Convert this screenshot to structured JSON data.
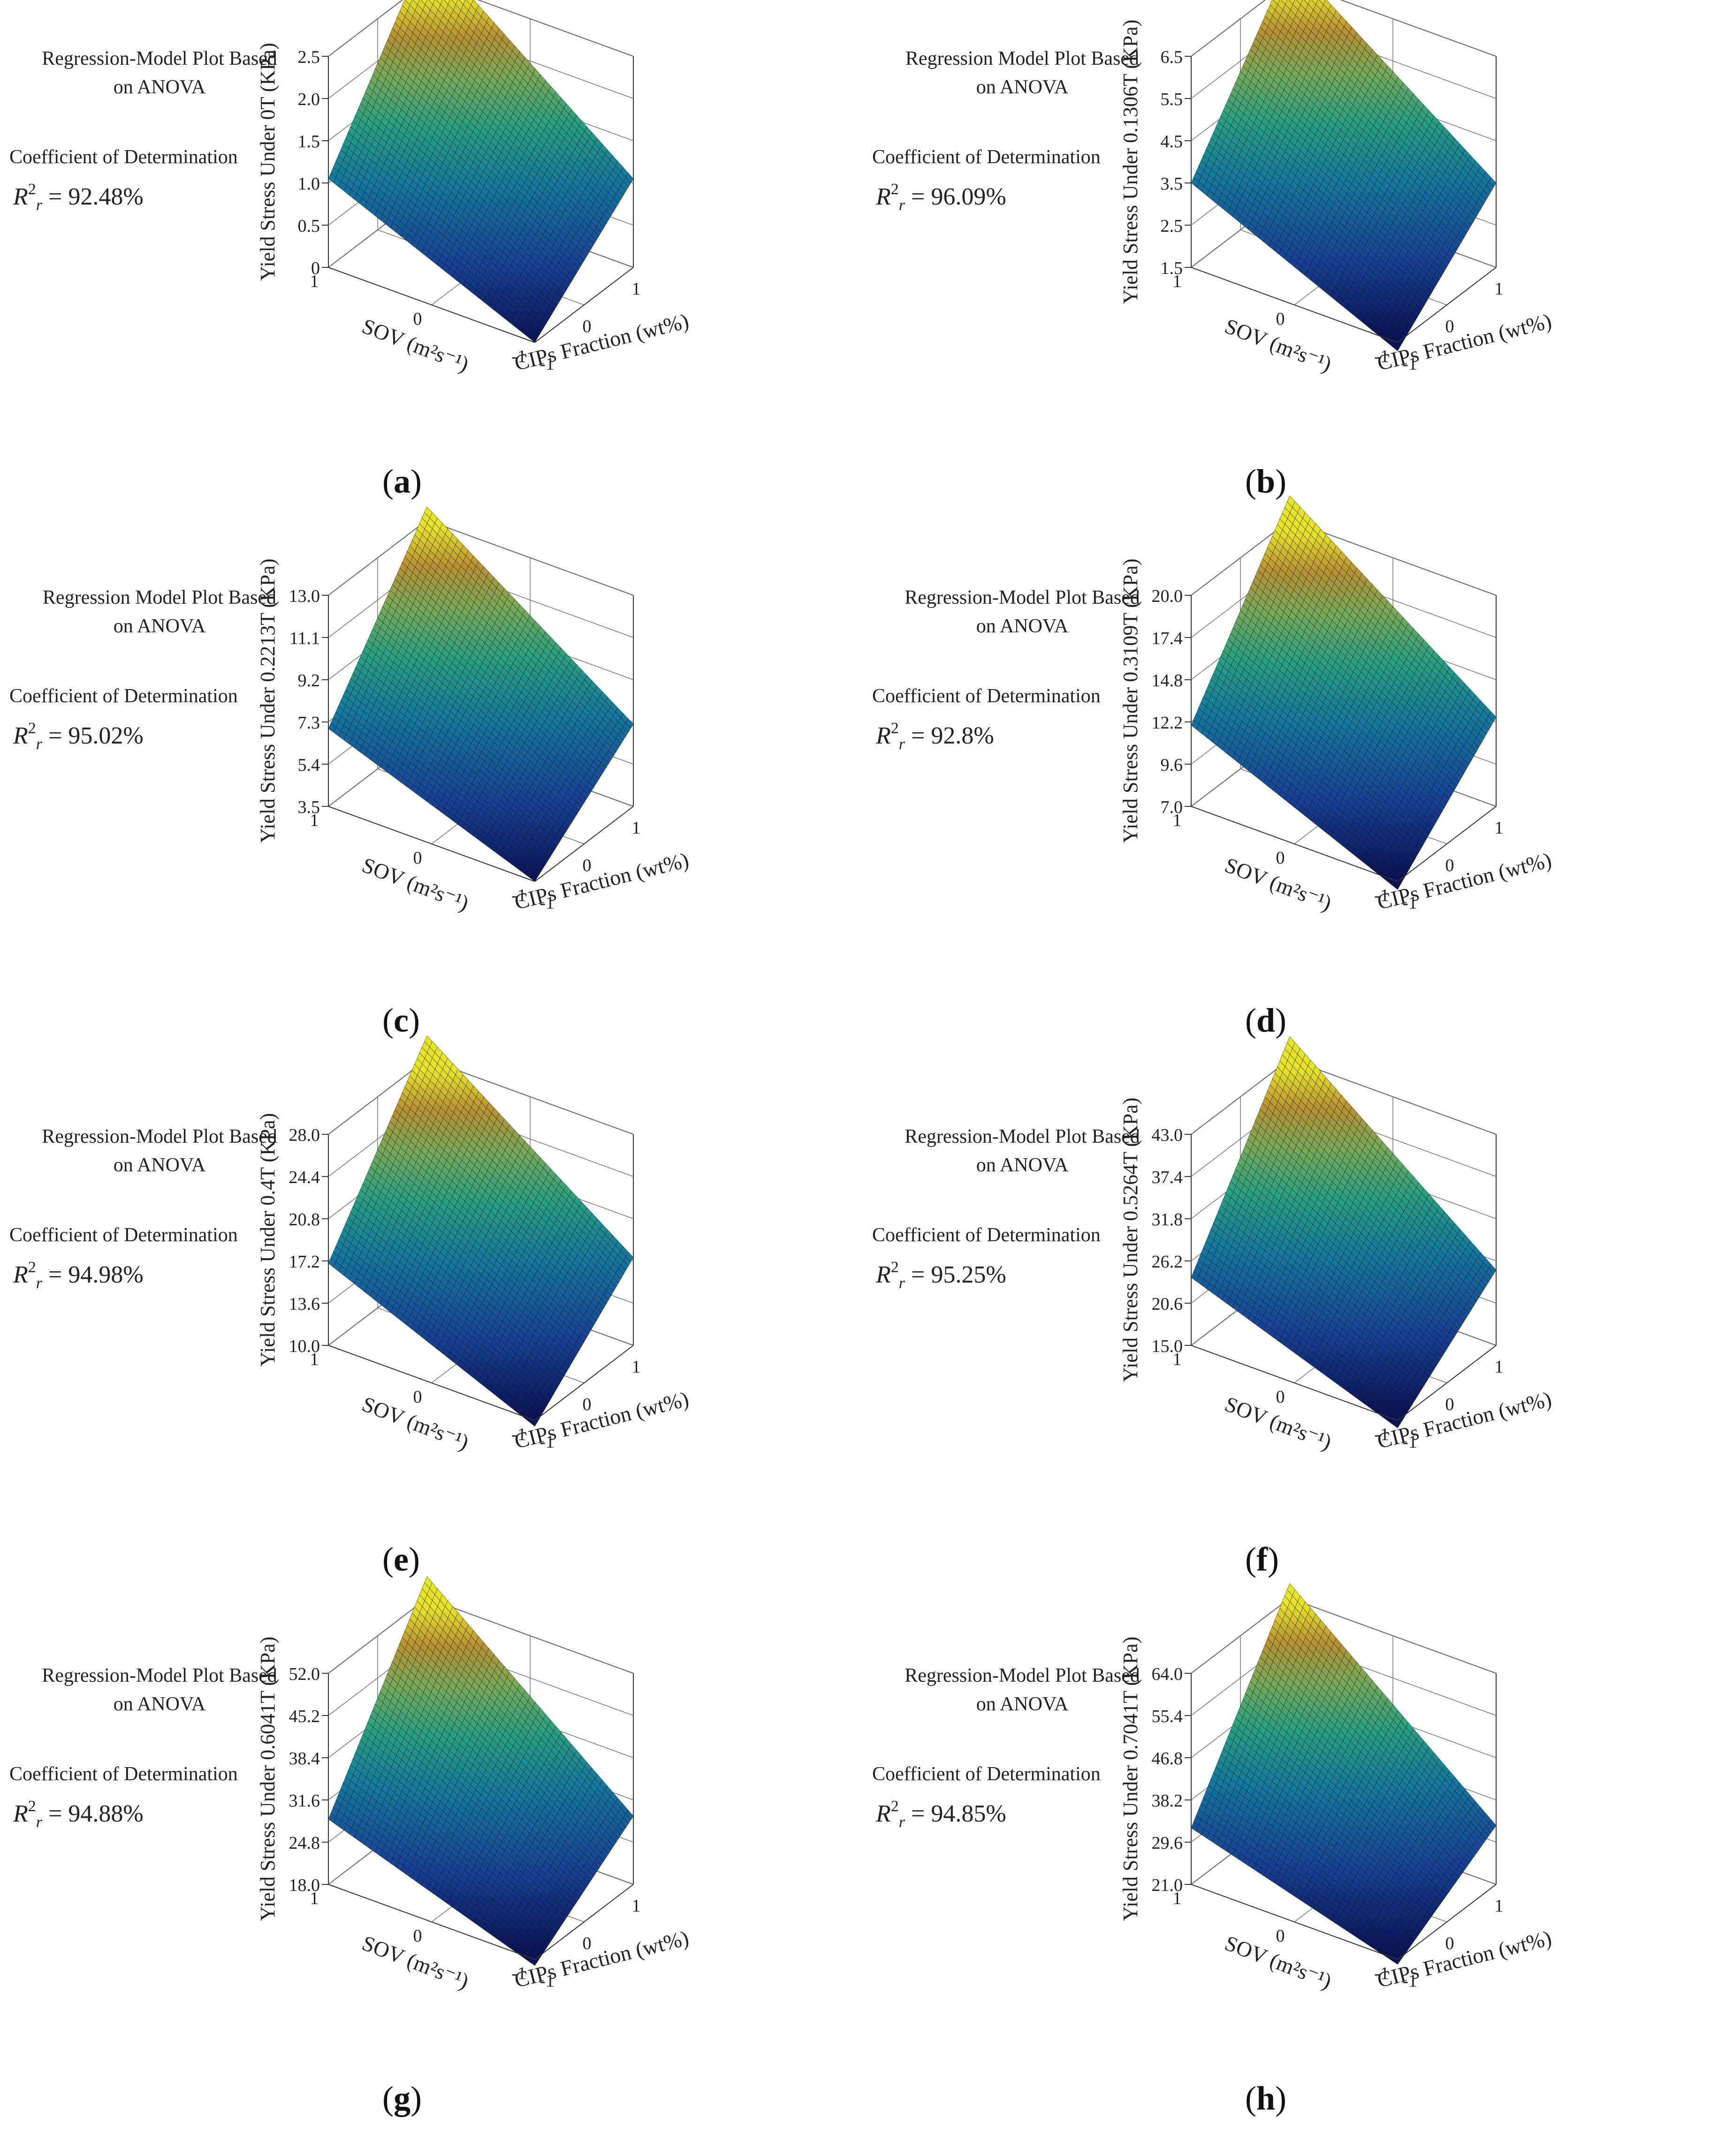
{
  "common": {
    "x_label": "CIPs Fraction (wt%)",
    "y_label": "SOV (m²s⁻¹)",
    "r2_prefix": "R",
    "r2_sup": "2",
    "r2_eq": " = "
  },
  "panels": [
    {
      "label": "a",
      "title_line1": "Regression-Model Plot Based",
      "title_line2": "on ANOVA",
      "coef_label": "Coefficient of Determination",
      "r2_sub": "r",
      "r2_value": "92.48%"
    },
    {
      "label": "b",
      "title_line1": "Regression Model Plot Based",
      "title_line2": "on ANOVA",
      "coef_label": "Coefficient of Determination",
      "r2_sub": "r",
      "r2_value": "96.09%"
    },
    {
      "label": "c",
      "title_line1": "Regression Model Plot Based",
      "title_line2": "on ANOVA",
      "coef_label": "Coefficient of Determination",
      "r2_sub": "r",
      "r2_value": "95.02%"
    },
    {
      "label": "d",
      "title_line1": "Regression-Model Plot Based",
      "title_line2": "on ANOVA",
      "coef_label": "Coefficient of Determination",
      "r2_sub": "r",
      "r2_value": "92.8%"
    },
    {
      "label": "e",
      "title_line1": "Regression-Model Plot Based",
      "title_line2": "on ANOVA",
      "coef_label": "Coefficient of Determination",
      "r2_sub": "r",
      "r2_value": "94.98%"
    },
    {
      "label": "f",
      "title_line1": "Regression-Model Plot Based",
      "title_line2": "on ANOVA",
      "coef_label": "Coefficient of Determination",
      "r2_sub": "r",
      "r2_value": "95.25%"
    },
    {
      "label": "g",
      "title_line1": "Regression-Model Plot Based",
      "title_line2": "on ANOVA",
      "coef_label": "Coefficient of Determination",
      "r2_sub": "r",
      "r2_value": "94.88%"
    },
    {
      "label": "h",
      "title_line1": "Regression-Model Plot Based",
      "title_line2": "on ANOVA",
      "coef_label": "Coefficient of Determination",
      "r2_sub": "r",
      "r2_value": "94.85%"
    }
  ],
  "chart_data": [
    {
      "type": "surface",
      "panel": "a",
      "zlabel": "Yield Stress Under 0T (KPa)",
      "x_label": "CIPs Fraction (wt%)",
      "y_label": "SOV (m²s⁻¹)",
      "x_ticks": [
        "-1",
        "0",
        "1"
      ],
      "y_ticks": [
        "-1",
        "0",
        "1"
      ],
      "z_ticks": [
        "0",
        "0.5",
        "1.0",
        "1.5",
        "2.0",
        "2.5"
      ],
      "z_tick_values": [
        0,
        0.5,
        1.0,
        1.5,
        2.0,
        2.5
      ],
      "zlim": [
        0,
        2.5
      ],
      "z_corners": {
        "xneg_yneg": 0.0,
        "xpos_yneg": 1.05,
        "xneg_ypos": 1.05,
        "xpos_ypos": 2.9
      },
      "grid": true
    },
    {
      "type": "surface",
      "panel": "b",
      "zlabel": "Yield Stress Under 0.1306T (KPa)",
      "x_label": "CIPs Fraction (wt%)",
      "y_label": "SOV (m²s⁻¹)",
      "x_ticks": [
        "-1",
        "0",
        "1"
      ],
      "y_ticks": [
        "-1",
        "0",
        "1"
      ],
      "z_ticks": [
        "1.5",
        "2.5",
        "3.5",
        "4.5",
        "5.5",
        "6.5"
      ],
      "z_tick_values": [
        1.5,
        2.5,
        3.5,
        4.5,
        5.5,
        6.5
      ],
      "zlim": [
        1.5,
        6.5
      ],
      "z_corners": {
        "xneg_yneg": 1.3,
        "xpos_yneg": 3.5,
        "xneg_ypos": 3.5,
        "xpos_ypos": 7.0
      },
      "grid": true
    },
    {
      "type": "surface",
      "panel": "c",
      "zlabel": "Yield Stress Under 0.2213T (KPa)",
      "x_label": "CIPs Fraction (wt%)",
      "y_label": "SOV (m²s⁻¹)",
      "x_ticks": [
        "-1",
        "0",
        "1"
      ],
      "y_ticks": [
        "-1",
        "0",
        "1"
      ],
      "z_ticks": [
        "3.5",
        "5.4",
        "7.3",
        "9.2",
        "11.1",
        "13.0"
      ],
      "z_tick_values": [
        3.5,
        5.4,
        7.3,
        9.2,
        11.1,
        13.0
      ],
      "zlim": [
        3.5,
        13.0
      ],
      "z_corners": {
        "xneg_yneg": 3.5,
        "xpos_yneg": 7.2,
        "xneg_ypos": 7.0,
        "xpos_ypos": 13.6
      },
      "grid": true
    },
    {
      "type": "surface",
      "panel": "d",
      "zlabel": "Yield Stress Under 0.3109T (KPa)",
      "x_label": "CIPs Fraction (wt%)",
      "y_label": "SOV (m²s⁻¹)",
      "x_ticks": [
        "-1",
        "0",
        "1"
      ],
      "y_ticks": [
        "-1",
        "0",
        "1"
      ],
      "z_ticks": [
        "7.0",
        "9.6",
        "12.2",
        "14.8",
        "17.4",
        "20.0"
      ],
      "z_tick_values": [
        7.0,
        9.6,
        12.2,
        14.8,
        17.4,
        20.0
      ],
      "zlim": [
        7.0,
        20.0
      ],
      "z_corners": {
        "xneg_yneg": 6.5,
        "xpos_yneg": 12.5,
        "xneg_ypos": 12.0,
        "xpos_ypos": 21.5
      },
      "grid": true
    },
    {
      "type": "surface",
      "panel": "e",
      "zlabel": "Yield Stress Under 0.4T (KPa)",
      "x_label": "CIPs Fraction (wt%)",
      "y_label": "SOV (m²s⁻¹)",
      "x_ticks": [
        "-1",
        "0",
        "1"
      ],
      "y_ticks": [
        "-1",
        "0",
        "1"
      ],
      "z_ticks": [
        "10.0",
        "13.6",
        "17.2",
        "20.8",
        "24.4",
        "28.0"
      ],
      "z_tick_values": [
        10.0,
        13.6,
        17.2,
        20.8,
        24.4,
        28.0
      ],
      "zlim": [
        10.0,
        28.0
      ],
      "z_corners": {
        "xneg_yneg": 9.5,
        "xpos_yneg": 17.5,
        "xneg_ypos": 17.0,
        "xpos_ypos": 30.0
      },
      "grid": true
    },
    {
      "type": "surface",
      "panel": "f",
      "zlabel": "Yield Stress Under 0.5264T (KPa)",
      "x_label": "CIPs Fraction (wt%)",
      "y_label": "SOV (m²s⁻¹)",
      "x_ticks": [
        "-1",
        "0",
        "1"
      ],
      "y_ticks": [
        "-1",
        "0",
        "1"
      ],
      "z_ticks": [
        "15.0",
        "20.6",
        "26.2",
        "31.8",
        "37.4",
        "43.0"
      ],
      "z_tick_values": [
        15.0,
        20.6,
        26.2,
        31.8,
        37.4,
        43.0
      ],
      "zlim": [
        15.0,
        43.0
      ],
      "z_corners": {
        "xneg_yneg": 14.0,
        "xpos_yneg": 25.0,
        "xneg_ypos": 24.0,
        "xpos_ypos": 46.0
      },
      "grid": true
    },
    {
      "type": "surface",
      "panel": "g",
      "zlabel": "Yield Stress Under 0.6041T (KPa)",
      "x_label": "CIPs Fraction (wt%)",
      "y_label": "SOV (m²s⁻¹)",
      "x_ticks": [
        "-1",
        "0",
        "1"
      ],
      "y_ticks": [
        "-1",
        "0",
        "1"
      ],
      "z_ticks": [
        "18.0",
        "24.8",
        "31.6",
        "38.4",
        "45.2",
        "52.0"
      ],
      "z_tick_values": [
        18.0,
        24.8,
        31.6,
        38.4,
        45.2,
        52.0
      ],
      "zlim": [
        18.0,
        52.0
      ],
      "z_corners": {
        "xneg_yneg": 17.0,
        "xpos_yneg": 29.0,
        "xneg_ypos": 28.5,
        "xpos_ypos": 55.5
      },
      "grid": true
    },
    {
      "type": "surface",
      "panel": "h",
      "zlabel": "Yield Stress Under 0.7041T (KPa)",
      "x_label": "CIPs Fraction (wt%)",
      "y_label": "SOV (m²s⁻¹)",
      "x_ticks": [
        "-1",
        "0",
        "1"
      ],
      "y_ticks": [
        "-1",
        "0",
        "1"
      ],
      "z_ticks": [
        "21.0",
        "29.6",
        "38.2",
        "46.8",
        "55.4",
        "64.0"
      ],
      "z_tick_values": [
        21.0,
        29.6,
        38.2,
        46.8,
        55.4,
        64.0
      ],
      "zlim": [
        21.0,
        64.0
      ],
      "z_corners": {
        "xneg_yneg": 20.0,
        "xpos_yneg": 33.0,
        "xneg_ypos": 32.5,
        "xpos_ypos": 67.0
      },
      "grid": true
    }
  ]
}
